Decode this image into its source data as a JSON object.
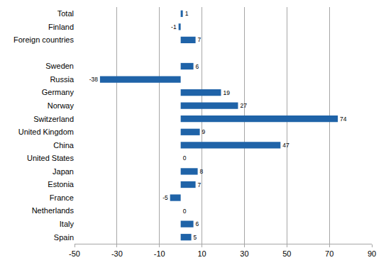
{
  "chart_data": {
    "type": "bar",
    "orientation": "horizontal",
    "categories": [
      "Total",
      "Finland",
      "Foreign countries",
      null,
      "Sweden",
      "Russia",
      "Germany",
      "Norway",
      "Switzerland",
      "United Kingdom",
      "China",
      "United States",
      "Japan",
      "Estonia",
      "France",
      "Netherlands",
      "Italy",
      "Spain"
    ],
    "values": [
      1,
      -1,
      7,
      null,
      6,
      -38,
      19,
      27,
      74,
      9,
      47,
      0,
      8,
      7,
      -5,
      0,
      6,
      5
    ],
    "color": "#1f63a8",
    "xlim": [
      -50,
      90
    ],
    "xticks": [
      -50,
      -30,
      -10,
      10,
      30,
      50,
      70,
      90
    ],
    "grid": true,
    "data_labels": true
  }
}
